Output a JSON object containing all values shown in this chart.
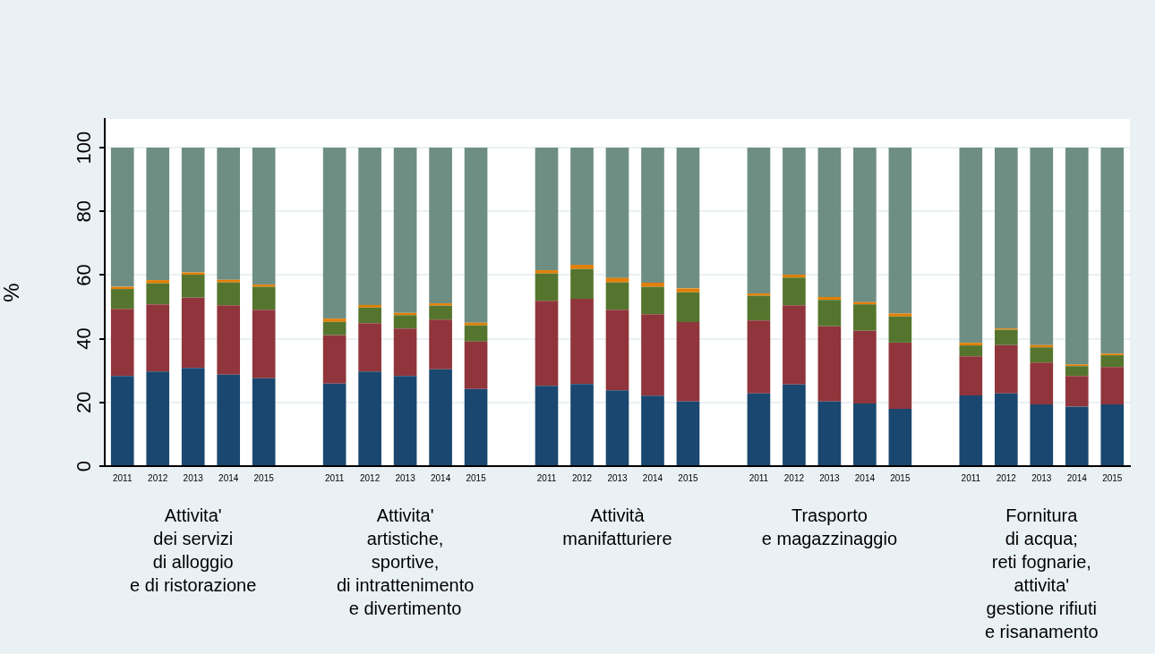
{
  "chart_data": {
    "type": "bar",
    "stacked": true,
    "ylabel": "%",
    "ylim": [
      0,
      109
    ],
    "yticks": [
      0,
      20,
      40,
      60,
      80,
      100
    ],
    "grid": "y",
    "legend": false,
    "categories": [
      "2011",
      "2012",
      "2013",
      "2014",
      "2015",
      null,
      "2011",
      "2012",
      "2013",
      "2014",
      "2015",
      null,
      "2011",
      "2012",
      "2013",
      "2014",
      "2015",
      null,
      "2011",
      "2012",
      "2013",
      "2014",
      "2015",
      null,
      "2011",
      "2012",
      "2013",
      "2014",
      "2015"
    ],
    "series": [
      {
        "color": "#1a476f",
        "values": [
          28.3,
          29.7,
          30.8,
          28.7,
          27.6,
          null,
          25.9,
          29.7,
          28.3,
          30.4,
          24.2,
          null,
          25.2,
          25.8,
          23.8,
          22.1,
          20.3,
          null,
          22.8,
          25.6,
          20.3,
          19.7,
          18.0,
          null,
          22.2,
          22.8,
          19.4,
          18.7,
          19.4
        ]
      },
      {
        "color": "#90353b",
        "values": [
          21.1,
          21.1,
          22.1,
          21.8,
          21.5,
          null,
          15.2,
          15.2,
          14.9,
          15.6,
          14.9,
          null,
          26.7,
          26.7,
          25.3,
          25.6,
          24.9,
          null,
          22.9,
          24.9,
          23.6,
          22.8,
          20.8,
          null,
          12.3,
          15.2,
          13.1,
          9.6,
          11.7
        ]
      },
      {
        "color": "#55752f",
        "values": [
          6.2,
          6.6,
          7.2,
          7.2,
          7.2,
          null,
          4.2,
          4.9,
          4.2,
          4.4,
          5.1,
          null,
          8.6,
          9.4,
          8.6,
          8.6,
          9.4,
          null,
          7.8,
          8.7,
          8.3,
          8.3,
          8.2,
          null,
          3.4,
          4.8,
          4.8,
          3.1,
          3.7
        ]
      },
      {
        "color": "#e37e00",
        "values": [
          0.7,
          1.0,
          0.7,
          0.8,
          0.7,
          null,
          1.0,
          0.8,
          0.7,
          0.7,
          0.8,
          null,
          1.0,
          1.3,
          1.4,
          1.3,
          1.2,
          null,
          0.7,
          0.9,
          0.9,
          0.7,
          0.9,
          null,
          0.8,
          0.4,
          0.7,
          0.5,
          0.5
        ]
      },
      {
        "color": "#6e8e84",
        "values": [
          43.7,
          41.6,
          39.2,
          41.5,
          43.0,
          null,
          53.7,
          49.4,
          51.9,
          48.9,
          55.0,
          null,
          38.5,
          36.8,
          40.9,
          42.4,
          44.2,
          null,
          45.8,
          39.9,
          46.9,
          48.5,
          52.1,
          null,
          61.3,
          56.8,
          62.0,
          68.1,
          64.7
        ]
      }
    ],
    "annotations": [
      "Attivita'\ndei servizi\ndi alloggio\ne di ristorazione",
      "Attivita'\nartistiche,\nsportive,\ndi intrattenimento\ne divertimento",
      "Attività\nmanifatturiere",
      "Trasporto\ne magazzinaggio",
      "Fornitura\ndi acqua;\nreti fognarie,\nattivita'\ngestione rifiuti\ne risanamento"
    ]
  }
}
